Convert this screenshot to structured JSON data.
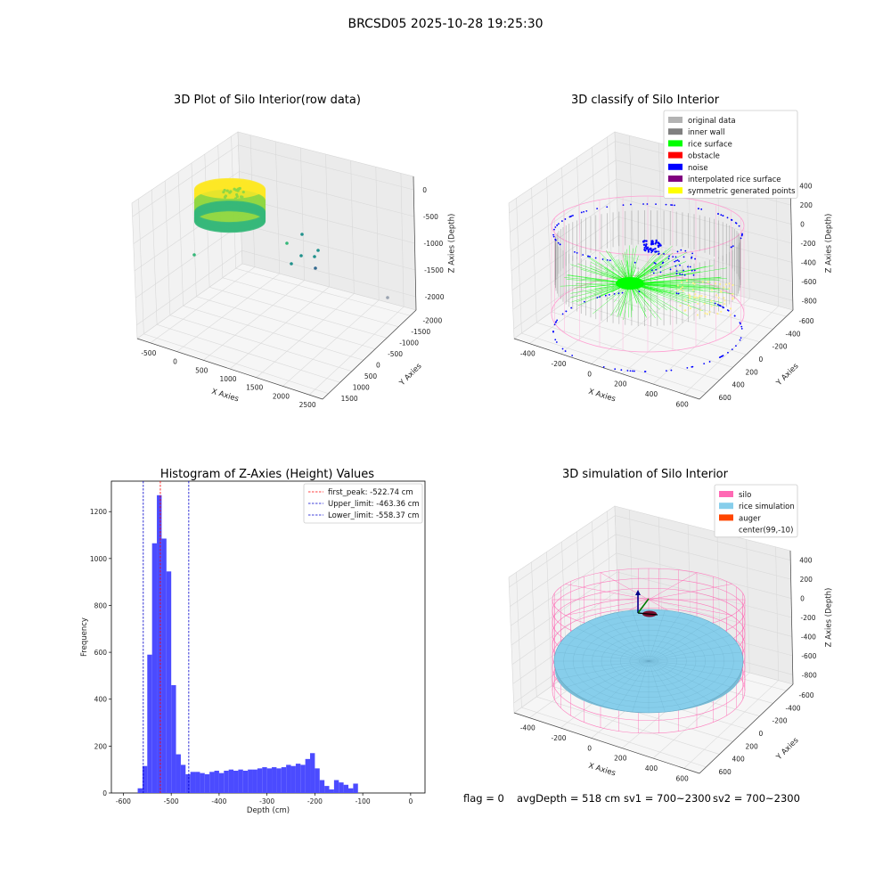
{
  "suptitle": "BRCSD05 2025-10-28 19:25:30",
  "footer": {
    "flag": "flag = 0",
    "avg_depth": "avgDepth = 518 cm",
    "sv1": "sv1 = 700~2300",
    "sv2": "sv2 = 700~2300"
  },
  "chart_data": [
    {
      "type": "scatter",
      "subtype": "3d-scatter",
      "title": "3D Plot of Silo Interior(row data)",
      "xlabel": "X Axies",
      "ylabel": "Y Axies",
      "zlabel": "Z Axies (Depth)",
      "x_ticks": [
        "-500",
        "0",
        "500",
        "1000",
        "1500",
        "2000",
        "2500"
      ],
      "y_ticks": [
        "-2000",
        "-1500",
        "-1000",
        "-500",
        "0",
        "500",
        "1000",
        "1500"
      ],
      "z_ticks": [
        "-2000",
        "-1500",
        "-1000",
        "-500",
        "0"
      ],
      "colormap": [
        "#fde725",
        "#90d743",
        "#35b779",
        "#21918c",
        "#31688e",
        "#9aa3b0"
      ]
    },
    {
      "type": "scatter",
      "subtype": "3d-scatter",
      "title": "3D classify of Silo Interior",
      "xlabel": "X Axies",
      "ylabel": "Y Axies",
      "zlabel": "Z Axies (Depth)",
      "x_ticks": [
        "-400",
        "-200",
        "0",
        "200",
        "400",
        "600"
      ],
      "y_ticks": [
        "-600",
        "-400",
        "-200",
        "0",
        "200",
        "400",
        "600"
      ],
      "z_ticks": [
        "-800",
        "-600",
        "-400",
        "-200",
        "0",
        "200",
        "400"
      ],
      "legend_position": "top-right",
      "legend": [
        {
          "name": "original data",
          "color": "#b3b3b3"
        },
        {
          "name": "inner wall",
          "color": "#808080"
        },
        {
          "name": "rice surface",
          "color": "#00ff00"
        },
        {
          "name": "obstacle",
          "color": "#ff0000"
        },
        {
          "name": "noise",
          "color": "#0000ff"
        },
        {
          "name": "interpolated rice surface",
          "color": "#800080"
        },
        {
          "name": "symmetric generated points",
          "color": "#ffff00"
        }
      ]
    },
    {
      "type": "bar",
      "subtype": "histogram",
      "title": "Histogram of Z-Axies (Height) Values",
      "xlabel": "Depth (cm)",
      "ylabel": "Frequency",
      "xlim": [
        -625,
        30
      ],
      "ylim": [
        0,
        1330
      ],
      "x_ticks": [
        -600,
        -500,
        -400,
        -300,
        -200,
        -100,
        0
      ],
      "y_ticks": [
        0,
        200,
        400,
        600,
        800,
        1000,
        1200
      ],
      "bar_color": "#4b4bff",
      "bin_width": 10,
      "bin_start": -570,
      "values": [
        20,
        115,
        590,
        1065,
        1270,
        1085,
        945,
        460,
        165,
        120,
        80,
        90,
        90,
        85,
        80,
        90,
        95,
        85,
        95,
        100,
        95,
        100,
        95,
        100,
        100,
        105,
        110,
        105,
        110,
        105,
        110,
        120,
        115,
        125,
        120,
        145,
        170,
        105,
        55,
        30,
        15,
        55,
        45,
        35,
        20,
        40
      ],
      "lines": [
        {
          "name": "first_peak: -522.74 cm",
          "x": -522.74,
          "color": "#ff0000"
        },
        {
          "name": "Upper_limit: -463.36 cm",
          "x": -463.36,
          "color": "#0000cc"
        },
        {
          "name": "Lower_limit: -558.37 cm",
          "x": -558.37,
          "color": "#0000cc"
        }
      ],
      "legend_position": "top-right"
    },
    {
      "type": "scatter",
      "subtype": "3d-surface",
      "title": "3D simulation of Silo Interior",
      "xlabel": "X Axies",
      "ylabel": "Y Axies",
      "zlabel": "Z Axies (Depth)",
      "x_ticks": [
        "-400",
        "-200",
        "0",
        "200",
        "400",
        "600"
      ],
      "y_ticks": [
        "-600",
        "-400",
        "-200",
        "0",
        "200",
        "400",
        "600"
      ],
      "z_ticks": [
        "-800",
        "-600",
        "-400",
        "-200",
        "0",
        "200",
        "400"
      ],
      "legend_position": "top-right",
      "legend": [
        {
          "name": "silo",
          "color": "#ff69b4"
        },
        {
          "name": "rice simulation",
          "color": "#87ceeb"
        },
        {
          "name": "auger",
          "color": "#ff4500"
        },
        {
          "name": "center(99,-10)",
          "color": "#ffffff"
        }
      ]
    }
  ]
}
